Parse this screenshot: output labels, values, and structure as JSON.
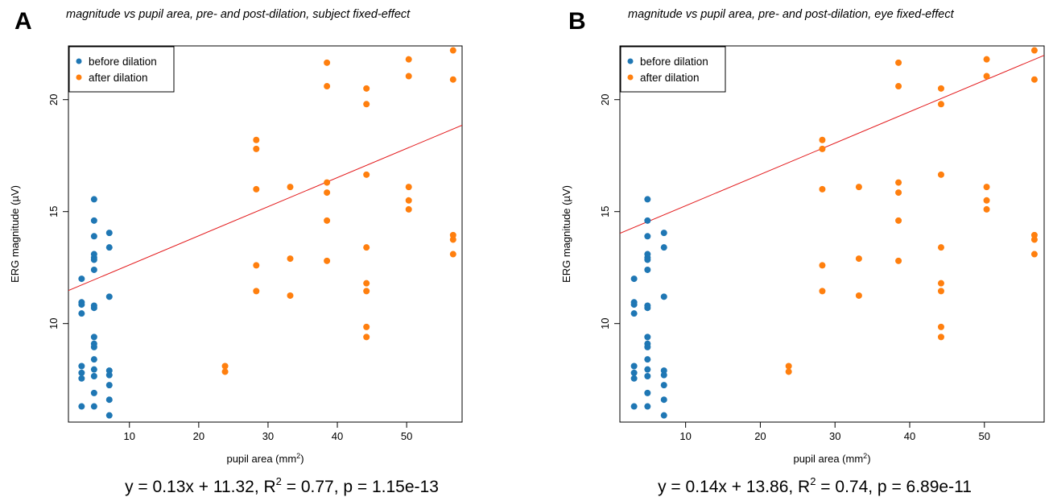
{
  "chart_data": [
    {
      "panel_label": "A",
      "type": "scatter",
      "title": "magnitude vs pupil area, pre- and post-dilation, subject fixed-effect",
      "xlabel": "pupil area (mm",
      "xlabel_sup": "2",
      "xlabel_end": ")",
      "ylabel": "ERG magnitude (µV)",
      "xlim": [
        1.2,
        58.0
      ],
      "ylim": [
        5.6,
        22.4
      ],
      "xticks": [
        10,
        20,
        30,
        40,
        50
      ],
      "yticks": [
        10,
        15,
        20
      ],
      "grid": false,
      "legend_position": "top-left",
      "equation": {
        "main": "y = 0.13x + 11.32, R",
        "sup": "2",
        "end": " = 0.77, p = 1.15e-13"
      },
      "fit": {
        "slope": 0.13,
        "intercept": 11.32,
        "color": "#e31a1c"
      },
      "series": [
        {
          "name": "before dilation",
          "color": "#1f77b4",
          "points": [
            [
              3.1,
              12.0
            ],
            [
              3.1,
              10.95
            ],
            [
              3.1,
              10.85
            ],
            [
              3.1,
              10.45
            ],
            [
              3.1,
              8.1
            ],
            [
              3.1,
              7.8
            ],
            [
              3.1,
              7.55
            ],
            [
              3.1,
              6.3
            ],
            [
              4.9,
              15.55
            ],
            [
              4.9,
              14.6
            ],
            [
              4.9,
              13.9
            ],
            [
              4.9,
              13.1
            ],
            [
              4.9,
              12.95
            ],
            [
              4.9,
              12.85
            ],
            [
              4.9,
              12.4
            ],
            [
              4.9,
              10.8
            ],
            [
              4.9,
              10.7
            ],
            [
              4.9,
              9.4
            ],
            [
              4.9,
              9.1
            ],
            [
              4.9,
              8.95
            ],
            [
              4.9,
              8.4
            ],
            [
              4.9,
              7.95
            ],
            [
              4.9,
              7.65
            ],
            [
              4.9,
              6.9
            ],
            [
              4.9,
              6.3
            ],
            [
              7.1,
              14.05
            ],
            [
              7.1,
              13.4
            ],
            [
              7.1,
              11.2
            ],
            [
              7.1,
              7.9
            ],
            [
              7.1,
              7.7
            ],
            [
              7.1,
              7.25
            ],
            [
              7.1,
              6.6
            ],
            [
              7.1,
              5.9
            ]
          ]
        },
        {
          "name": "after dilation",
          "color": "#ff7f0e",
          "points": [
            [
              23.8,
              8.1
            ],
            [
              23.8,
              7.85
            ],
            [
              28.3,
              18.2
            ],
            [
              28.3,
              17.8
            ],
            [
              28.3,
              16.0
            ],
            [
              28.3,
              12.6
            ],
            [
              28.3,
              11.45
            ],
            [
              33.2,
              16.1
            ],
            [
              33.2,
              12.9
            ],
            [
              33.2,
              11.25
            ],
            [
              38.5,
              21.65
            ],
            [
              38.5,
              20.6
            ],
            [
              38.5,
              16.3
            ],
            [
              38.5,
              15.85
            ],
            [
              38.5,
              14.6
            ],
            [
              38.5,
              12.8
            ],
            [
              44.2,
              20.5
            ],
            [
              44.2,
              19.8
            ],
            [
              44.2,
              16.65
            ],
            [
              44.2,
              13.4
            ],
            [
              44.2,
              11.8
            ],
            [
              44.2,
              11.45
            ],
            [
              44.2,
              9.85
            ],
            [
              44.2,
              9.4
            ],
            [
              50.3,
              21.8
            ],
            [
              50.3,
              21.05
            ],
            [
              50.3,
              16.1
            ],
            [
              50.3,
              15.5
            ],
            [
              50.3,
              15.1
            ],
            [
              56.7,
              22.2
            ],
            [
              56.7,
              20.9
            ],
            [
              56.7,
              13.95
            ],
            [
              56.7,
              13.75
            ],
            [
              56.7,
              13.1
            ]
          ]
        }
      ]
    },
    {
      "panel_label": "B",
      "type": "scatter",
      "title": "magnitude vs pupil area, pre- and post-dilation, eye fixed-effect",
      "xlabel": "pupil area (mm",
      "xlabel_sup": "2",
      "xlabel_end": ")",
      "ylabel": "ERG magnitude (µV)",
      "xlim": [
        1.2,
        58.0
      ],
      "ylim": [
        5.6,
        22.4
      ],
      "xticks": [
        10,
        20,
        30,
        40,
        50
      ],
      "yticks": [
        10,
        15,
        20
      ],
      "grid": false,
      "legend_position": "top-left",
      "equation": {
        "main": "y = 0.14x + 13.86, R",
        "sup": "2",
        "end": " = 0.74, p = 6.89e-11"
      },
      "fit": {
        "slope": 0.14,
        "intercept": 13.86,
        "color": "#e31a1c"
      },
      "series": [
        {
          "name": "before dilation",
          "color": "#1f77b4",
          "points": [
            [
              3.1,
              12.0
            ],
            [
              3.1,
              10.95
            ],
            [
              3.1,
              10.85
            ],
            [
              3.1,
              10.45
            ],
            [
              3.1,
              8.1
            ],
            [
              3.1,
              7.8
            ],
            [
              3.1,
              7.55
            ],
            [
              3.1,
              6.3
            ],
            [
              4.9,
              15.55
            ],
            [
              4.9,
              14.6
            ],
            [
              4.9,
              13.9
            ],
            [
              4.9,
              13.1
            ],
            [
              4.9,
              12.95
            ],
            [
              4.9,
              12.85
            ],
            [
              4.9,
              12.4
            ],
            [
              4.9,
              10.8
            ],
            [
              4.9,
              10.7
            ],
            [
              4.9,
              9.4
            ],
            [
              4.9,
              9.1
            ],
            [
              4.9,
              8.95
            ],
            [
              4.9,
              8.4
            ],
            [
              4.9,
              7.95
            ],
            [
              4.9,
              7.65
            ],
            [
              4.9,
              6.9
            ],
            [
              4.9,
              6.3
            ],
            [
              7.1,
              14.05
            ],
            [
              7.1,
              13.4
            ],
            [
              7.1,
              11.2
            ],
            [
              7.1,
              7.9
            ],
            [
              7.1,
              7.7
            ],
            [
              7.1,
              7.25
            ],
            [
              7.1,
              6.6
            ],
            [
              7.1,
              5.9
            ]
          ]
        },
        {
          "name": "after dilation",
          "color": "#ff7f0e",
          "points": [
            [
              23.8,
              8.1
            ],
            [
              23.8,
              7.85
            ],
            [
              28.3,
              18.2
            ],
            [
              28.3,
              17.8
            ],
            [
              28.3,
              16.0
            ],
            [
              28.3,
              12.6
            ],
            [
              28.3,
              11.45
            ],
            [
              33.2,
              16.1
            ],
            [
              33.2,
              12.9
            ],
            [
              33.2,
              11.25
            ],
            [
              38.5,
              21.65
            ],
            [
              38.5,
              20.6
            ],
            [
              38.5,
              16.3
            ],
            [
              38.5,
              15.85
            ],
            [
              38.5,
              14.6
            ],
            [
              38.5,
              12.8
            ],
            [
              44.2,
              20.5
            ],
            [
              44.2,
              19.8
            ],
            [
              44.2,
              16.65
            ],
            [
              44.2,
              13.4
            ],
            [
              44.2,
              11.8
            ],
            [
              44.2,
              11.45
            ],
            [
              44.2,
              9.85
            ],
            [
              44.2,
              9.4
            ],
            [
              50.3,
              21.8
            ],
            [
              50.3,
              21.05
            ],
            [
              50.3,
              16.1
            ],
            [
              50.3,
              15.5
            ],
            [
              50.3,
              15.1
            ],
            [
              56.7,
              22.2
            ],
            [
              56.7,
              20.9
            ],
            [
              56.7,
              13.95
            ],
            [
              56.7,
              13.75
            ],
            [
              56.7,
              13.1
            ]
          ]
        }
      ]
    }
  ]
}
